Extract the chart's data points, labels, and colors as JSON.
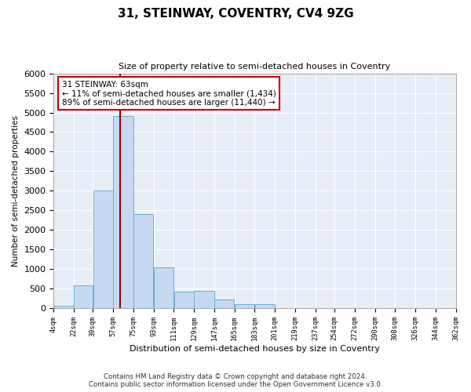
{
  "title": "31, STEINWAY, COVENTRY, CV4 9ZG",
  "subtitle": "Size of property relative to semi-detached houses in Coventry",
  "xlabel": "Distribution of semi-detached houses by size in Coventry",
  "ylabel": "Number of semi-detached properties",
  "footer_line1": "Contains HM Land Registry data © Crown copyright and database right 2024.",
  "footer_line2": "Contains public sector information licensed under the Open Government Licence v3.0.",
  "property_size": 63,
  "property_label": "31 STEINWAY: 63sqm",
  "annotation_line1": "← 11% of semi-detached houses are smaller (1,434)",
  "annotation_line2": "89% of semi-detached houses are larger (11,440) →",
  "bin_edges": [
    4,
    22,
    39,
    57,
    75,
    93,
    111,
    129,
    147,
    165,
    183,
    201,
    219,
    237,
    254,
    272,
    290,
    308,
    326,
    344,
    362
  ],
  "bar_heights": [
    60,
    590,
    3000,
    4900,
    2400,
    1050,
    430,
    450,
    230,
    100,
    100,
    5,
    5,
    5,
    5,
    5,
    5,
    5,
    5,
    5
  ],
  "bar_color": "#c6d9f0",
  "bar_edge_color": "#6baed6",
  "highlight_line_color": "#990000",
  "annotation_box_color": "#cc0000",
  "background_color": "#e8eef8",
  "ylim": [
    0,
    6000
  ],
  "yticks": [
    0,
    500,
    1000,
    1500,
    2000,
    2500,
    3000,
    3500,
    4000,
    4500,
    5000,
    5500,
    6000
  ],
  "tick_labels": [
    "4sqm",
    "22sqm",
    "39sqm",
    "57sqm",
    "75sqm",
    "93sqm",
    "111sqm",
    "129sqm",
    "147sqm",
    "165sqm",
    "183sqm",
    "201sqm",
    "219sqm",
    "237sqm",
    "254sqm",
    "272sqm",
    "290sqm",
    "308sqm",
    "326sqm",
    "344sqm",
    "362sqm"
  ]
}
